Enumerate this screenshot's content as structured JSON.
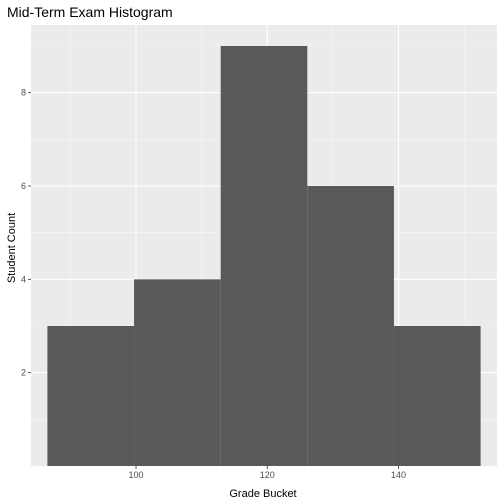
{
  "chart_data": {
    "type": "bar",
    "title": "Mid-Term Exam Histogram",
    "xlabel": "Grade Bucket",
    "ylabel": "Student Count",
    "xlim": [
      84,
      155
    ],
    "ylim": [
      0,
      9.45
    ],
    "x_ticks": [
      100,
      120,
      140
    ],
    "y_ticks": [
      2,
      4,
      6,
      8
    ],
    "bins": [
      {
        "start": 86.5,
        "end": 99.7,
        "count": 3
      },
      {
        "start": 99.7,
        "end": 112.9,
        "count": 4
      },
      {
        "start": 112.9,
        "end": 126.1,
        "count": 9
      },
      {
        "start": 126.1,
        "end": 139.3,
        "count": 6
      },
      {
        "start": 139.3,
        "end": 152.5,
        "count": 3
      }
    ],
    "grid": true,
    "legend": "none",
    "colors": {
      "bar": "#595959",
      "panel": "#ebebeb",
      "grid_major": "#ffffff",
      "grid_minor": "#f5f5f5",
      "tick_label": "#4d4d4d"
    }
  }
}
